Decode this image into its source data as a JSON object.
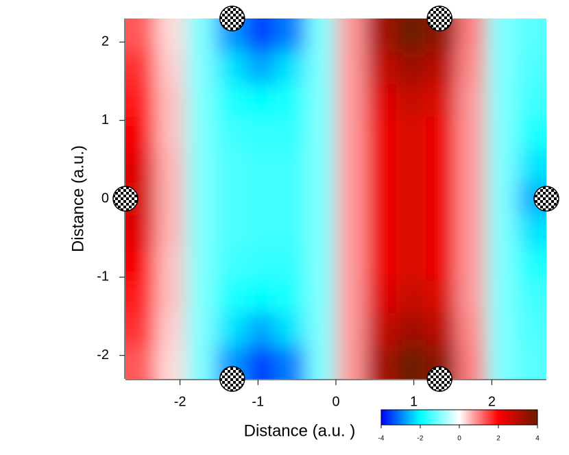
{
  "chart_data": {
    "type": "heatmap",
    "xlabel": "Distance (a.u.  )",
    "ylabel": "Distance (a.u.)",
    "xlim": [
      -2.7,
      2.7
    ],
    "ylim": [
      -2.3,
      2.3
    ],
    "xticks": [
      -2,
      -1,
      0,
      1,
      2
    ],
    "yticks": [
      -2,
      -1,
      0,
      1,
      2
    ],
    "x": [
      -2.51,
      -2.12,
      -1.74,
      -1.35,
      -0.96,
      -0.58,
      -0.19,
      0.19,
      0.58,
      0.96,
      1.35,
      1.74,
      2.12,
      2.51
    ],
    "y": [
      2.09,
      1.67,
      1.25,
      0.84,
      0.42,
      0,
      -0.42,
      -0.84,
      -1.25,
      -1.67,
      -2.09
    ],
    "z": [
      [
        1.3,
        0.3,
        -1.0,
        -2.8,
        -3.5,
        -3.0,
        -1.0,
        0.8,
        3.2,
        4.0,
        3.5,
        1.0,
        -1.0,
        -1.3
      ],
      [
        1.6,
        0.4,
        -1.0,
        -2.2,
        -2.7,
        -2.2,
        -1.0,
        0.8,
        2.8,
        3.3,
        2.9,
        0.9,
        -1.0,
        -1.4
      ],
      [
        1.8,
        0.5,
        -1.0,
        -1.8,
        -2.0,
        -1.8,
        -1.0,
        0.8,
        2.4,
        2.8,
        2.5,
        0.8,
        -1.0,
        -1.5
      ],
      [
        2.1,
        0.5,
        -1.0,
        -1.5,
        -1.6,
        -1.6,
        -1.0,
        0.8,
        2.2,
        2.5,
        2.2,
        0.8,
        -1.0,
        -1.8
      ],
      [
        2.4,
        0.6,
        -1.0,
        -1.4,
        -1.5,
        -1.5,
        -1.0,
        0.8,
        2.2,
        2.5,
        2.2,
        0.8,
        -1.0,
        -2.2
      ],
      [
        2.6,
        0.6,
        -1.0,
        -1.4,
        -1.5,
        -1.5,
        -1.0,
        0.8,
        2.2,
        2.5,
        2.2,
        0.8,
        -1.0,
        -2.6
      ],
      [
        2.4,
        0.6,
        -1.0,
        -1.4,
        -1.5,
        -1.5,
        -1.0,
        0.8,
        2.2,
        2.5,
        2.2,
        0.8,
        -1.0,
        -2.2
      ],
      [
        2.1,
        0.5,
        -1.0,
        -1.5,
        -1.6,
        -1.6,
        -1.0,
        0.8,
        2.2,
        2.5,
        2.2,
        0.8,
        -1.0,
        -1.8
      ],
      [
        1.8,
        0.5,
        -1.0,
        -1.8,
        -2.0,
        -1.8,
        -1.0,
        0.8,
        2.4,
        2.8,
        2.5,
        0.8,
        -1.0,
        -1.5
      ],
      [
        1.6,
        0.4,
        -1.0,
        -2.2,
        -2.7,
        -2.2,
        -1.0,
        0.8,
        2.8,
        3.3,
        2.9,
        0.9,
        -1.0,
        -1.4
      ],
      [
        1.3,
        0.3,
        -1.0,
        -2.8,
        -3.5,
        -3.0,
        -1.0,
        0.8,
        3.2,
        4.0,
        3.5,
        1.0,
        -1.0,
        -1.3
      ]
    ],
    "colorscale": {
      "colors": [
        "#0000ff",
        "#00ffff",
        "#ffffff",
        "#ff0000",
        "#6b1a00"
      ],
      "ticks": [
        -4,
        -2,
        0,
        2,
        4
      ]
    },
    "atoms": {
      "x": [
        -1.33,
        1.33,
        -2.7,
        2.7,
        -1.33,
        1.33
      ],
      "y": [
        2.3,
        2.3,
        0,
        0,
        -2.3,
        -2.3
      ]
    }
  }
}
